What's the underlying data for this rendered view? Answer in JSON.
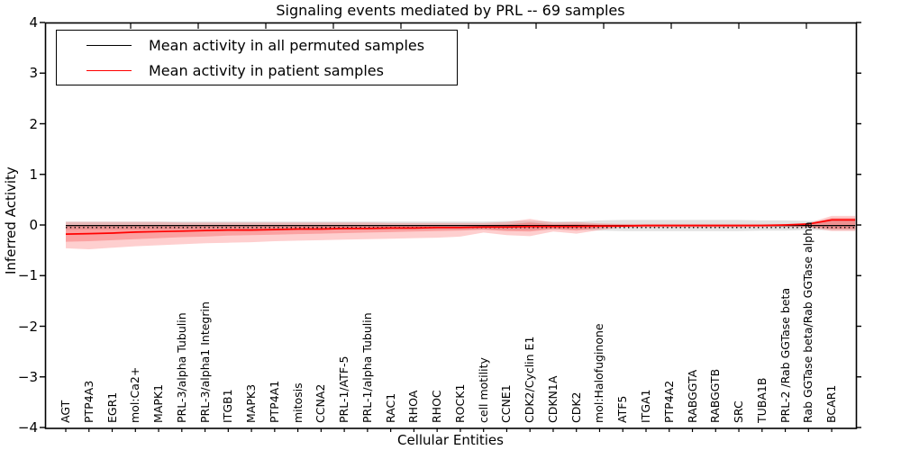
{
  "title": "Signaling events mediated by PRL -- 69 samples",
  "legend": {
    "items": [
      {
        "label": "Mean activity in all permuted samples",
        "color": "#000000"
      },
      {
        "label": "Mean activity in patient samples",
        "color": "#ff0000"
      }
    ]
  },
  "axes": {
    "xlabel": "Cellular Entities",
    "ylabel": "Inferred Activity",
    "yticks": [
      "4",
      "3",
      "2",
      "1",
      "0",
      "−1",
      "−2",
      "−3",
      "−4"
    ],
    "ylim": [
      -4,
      4
    ],
    "grid": false
  },
  "chart_data": {
    "type": "line",
    "title": "Signaling events mediated by PRL -- 69 samples",
    "xlabel": "Cellular Entities",
    "ylabel": "Inferred Activity",
    "ylim": [
      -4,
      4
    ],
    "legend_position": "upper left",
    "grid": false,
    "categories": [
      "AGT",
      "PTP4A3",
      "EGR1",
      "mol:Ca2+",
      "MAPK1",
      "PRL-3/alpha Tubulin",
      "PRL-3/alpha1 Integrin",
      "ITGB1",
      "MAPK3",
      "PTP4A1",
      "mitosis",
      "CCNA2",
      "PRL-1/ATF-5",
      "PRL-1/alpha Tubulin",
      "RAC1",
      "RHOA",
      "RHOC",
      "ROCK1",
      "cell motility",
      "CCNE1",
      "CDK2/Cyclin E1",
      "CDKN1A",
      "CDK2",
      "mol:Halofuginone",
      "ATF5",
      "ITGA1",
      "PTP4A2",
      "RABGGTA",
      "RABGGTB",
      "SRC",
      "TUBA1B",
      "PRL-2 /Rab GGTase beta",
      "Rab GGTase beta/Rab GGTase alpha",
      "BCAR1"
    ],
    "series": [
      {
        "name": "Mean activity in all permuted samples",
        "color": "#000000",
        "values": [
          -0.01,
          -0.01,
          -0.01,
          -0.01,
          -0.01,
          -0.01,
          -0.01,
          -0.01,
          -0.01,
          -0.01,
          -0.01,
          -0.01,
          -0.01,
          -0.01,
          -0.01,
          -0.01,
          -0.01,
          -0.01,
          -0.01,
          -0.01,
          -0.01,
          -0.01,
          -0.01,
          -0.01,
          -0.01,
          -0.01,
          -0.01,
          -0.01,
          -0.01,
          -0.01,
          -0.01,
          -0.01,
          -0.01,
          -0.01
        ]
      },
      {
        "name": "Mean activity in patient samples",
        "color": "#ff0000",
        "values": [
          -0.18,
          -0.17,
          -0.16,
          -0.14,
          -0.13,
          -0.12,
          -0.11,
          -0.1,
          -0.1,
          -0.09,
          -0.08,
          -0.08,
          -0.07,
          -0.07,
          -0.06,
          -0.06,
          -0.05,
          -0.05,
          -0.04,
          -0.04,
          -0.03,
          -0.03,
          -0.03,
          -0.02,
          -0.02,
          -0.01,
          -0.01,
          -0.01,
          -0.01,
          -0.01,
          -0.01,
          0.0,
          0.02,
          0.1
        ]
      }
    ],
    "bands": [
      {
        "name": "permuted-sample-range",
        "color": "rgba(125,125,125,0.22)",
        "upper": [
          0.07,
          0.07,
          0.07,
          0.07,
          0.07,
          0.07,
          0.07,
          0.07,
          0.07,
          0.07,
          0.07,
          0.07,
          0.07,
          0.07,
          0.07,
          0.07,
          0.07,
          0.07,
          0.07,
          0.08,
          0.08,
          0.07,
          0.07,
          0.09,
          0.1,
          0.1,
          0.1,
          0.1,
          0.1,
          0.1,
          0.09,
          0.09,
          0.08,
          0.08
        ],
        "lower": [
          -0.1,
          -0.09,
          -0.09,
          -0.09,
          -0.09,
          -0.09,
          -0.09,
          -0.09,
          -0.09,
          -0.09,
          -0.09,
          -0.09,
          -0.09,
          -0.09,
          -0.09,
          -0.09,
          -0.09,
          -0.09,
          -0.09,
          -0.1,
          -0.1,
          -0.09,
          -0.09,
          -0.11,
          -0.12,
          -0.12,
          -0.12,
          -0.12,
          -0.12,
          -0.12,
          -0.11,
          -0.11,
          -0.1,
          -0.1
        ]
      },
      {
        "name": "patient-range-outer",
        "color": "rgba(250,65,65,0.25)",
        "upper": [
          0.06,
          0.06,
          0.06,
          0.06,
          0.06,
          0.05,
          0.05,
          0.05,
          0.05,
          0.05,
          0.05,
          0.05,
          0.05,
          0.05,
          0.04,
          0.04,
          0.04,
          0.04,
          0.04,
          0.06,
          0.12,
          0.05,
          0.06,
          0.03,
          0.02,
          0.02,
          0.02,
          0.02,
          0.02,
          0.02,
          0.02,
          0.02,
          0.04,
          0.18
        ],
        "lower": [
          -0.46,
          -0.48,
          -0.45,
          -0.42,
          -0.4,
          -0.38,
          -0.36,
          -0.35,
          -0.34,
          -0.32,
          -0.31,
          -0.3,
          -0.29,
          -0.28,
          -0.27,
          -0.26,
          -0.25,
          -0.23,
          -0.15,
          -0.2,
          -0.22,
          -0.13,
          -0.17,
          -0.1,
          -0.05,
          -0.05,
          -0.05,
          -0.05,
          -0.05,
          -0.05,
          -0.04,
          -0.04,
          -0.05,
          -0.12
        ]
      },
      {
        "name": "patient-range-inner",
        "color": "rgba(245,55,55,0.30)",
        "upper": [
          -0.02,
          -0.02,
          -0.02,
          -0.02,
          -0.02,
          -0.02,
          -0.01,
          -0.01,
          -0.01,
          -0.01,
          -0.01,
          -0.01,
          -0.01,
          -0.01,
          -0.01,
          -0.01,
          -0.01,
          -0.01,
          0.0,
          0.01,
          0.05,
          0.01,
          0.02,
          0.01,
          0.01,
          0.01,
          0.01,
          0.01,
          0.01,
          0.01,
          0.01,
          0.01,
          0.02,
          0.14
        ],
        "lower": [
          -0.33,
          -0.32,
          -0.3,
          -0.28,
          -0.26,
          -0.24,
          -0.23,
          -0.21,
          -0.2,
          -0.19,
          -0.18,
          -0.17,
          -0.16,
          -0.15,
          -0.14,
          -0.13,
          -0.12,
          -0.11,
          -0.09,
          -0.12,
          -0.13,
          -0.08,
          -0.11,
          -0.06,
          -0.03,
          -0.03,
          -0.03,
          -0.03,
          -0.03,
          -0.03,
          -0.02,
          -0.02,
          -0.03,
          -0.08
        ]
      }
    ]
  }
}
